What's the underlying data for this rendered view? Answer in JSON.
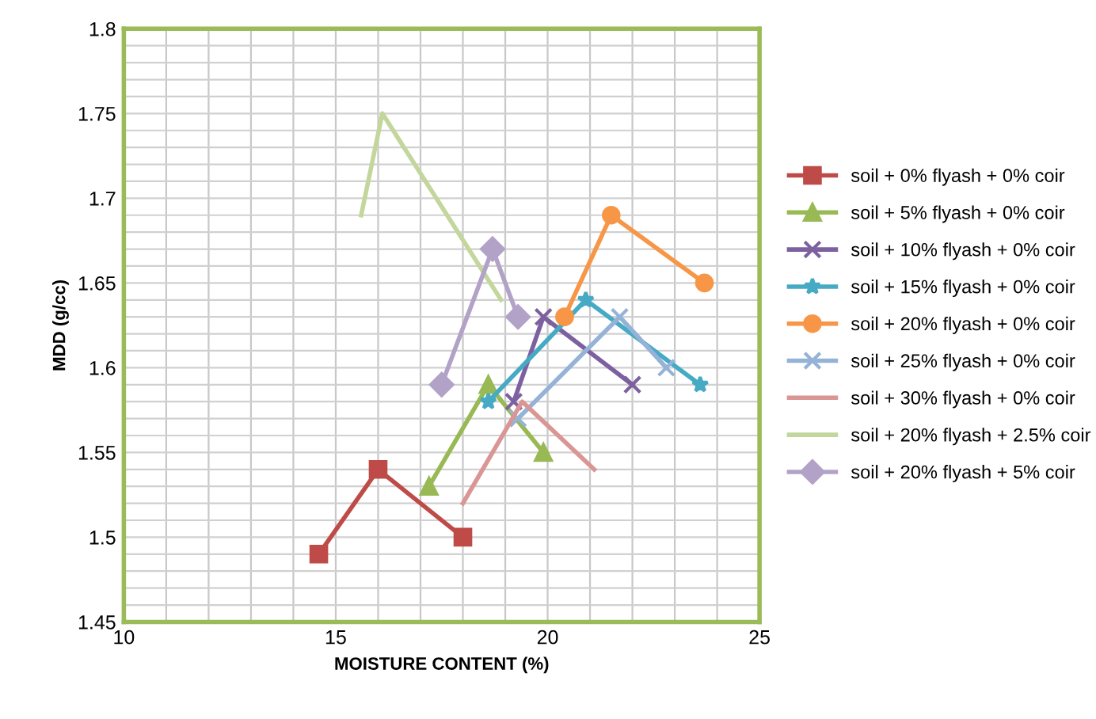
{
  "chart_data": {
    "type": "line",
    "xlabel": "MOISTURE CONTENT (%)",
    "ylabel": "MDD (g/cc)",
    "xlim": [
      10,
      25
    ],
    "xticks": [
      10,
      15,
      20,
      25
    ],
    "ylim": [
      1.45,
      1.8
    ],
    "yticks": [
      1.45,
      1.5,
      1.55,
      1.6,
      1.65,
      1.7,
      1.75,
      1.8
    ],
    "grid": true,
    "legend": "right",
    "series": [
      {
        "name": "soil + 0% flyash + 0% coir",
        "color": "#be4b48",
        "marker": "square",
        "x": [
          14.6,
          16.0,
          18.0
        ],
        "values": [
          1.49,
          1.54,
          1.5
        ]
      },
      {
        "name": "soil + 5% flyash + 0% coir",
        "color": "#98b954",
        "marker": "triangle",
        "x": [
          17.2,
          18.6,
          19.9
        ],
        "values": [
          1.53,
          1.59,
          1.55
        ]
      },
      {
        "name": "soil + 10% flyash + 0% coir",
        "color": "#7d60a0",
        "marker": "cross",
        "x": [
          19.2,
          19.9,
          22.0
        ],
        "values": [
          1.58,
          1.63,
          1.59
        ]
      },
      {
        "name": "soil + 15% flyash + 0% coir",
        "color": "#46aac5",
        "marker": "star",
        "x": [
          18.6,
          20.9,
          23.6
        ],
        "values": [
          1.58,
          1.64,
          1.59
        ]
      },
      {
        "name": "soil + 20% flyash + 0% coir",
        "color": "#f79646",
        "marker": "circle",
        "x": [
          20.4,
          21.5,
          23.7
        ],
        "values": [
          1.63,
          1.69,
          1.65
        ]
      },
      {
        "name": "soil + 25% flyash + 0% coir",
        "color": "#95b3d7",
        "marker": "cross",
        "x": [
          19.3,
          21.7,
          22.8
        ],
        "values": [
          1.57,
          1.63,
          1.6
        ]
      },
      {
        "name": "soil + 30% flyash + 0% coir",
        "color": "#d99694",
        "marker": "none",
        "x": [
          18.0,
          19.4,
          21.1
        ],
        "values": [
          1.52,
          1.58,
          1.54
        ]
      },
      {
        "name": "soil + 20% flyash + 2.5% coir",
        "color": "#c3d69b",
        "marker": "none",
        "x": [
          15.6,
          16.1,
          18.9
        ],
        "values": [
          1.69,
          1.75,
          1.64
        ]
      },
      {
        "name": "soil + 20% flyash + 5% coir",
        "color": "#b3a2c7",
        "marker": "diamond",
        "x": [
          17.5,
          18.7,
          19.3
        ],
        "values": [
          1.59,
          1.67,
          1.63
        ]
      }
    ]
  }
}
